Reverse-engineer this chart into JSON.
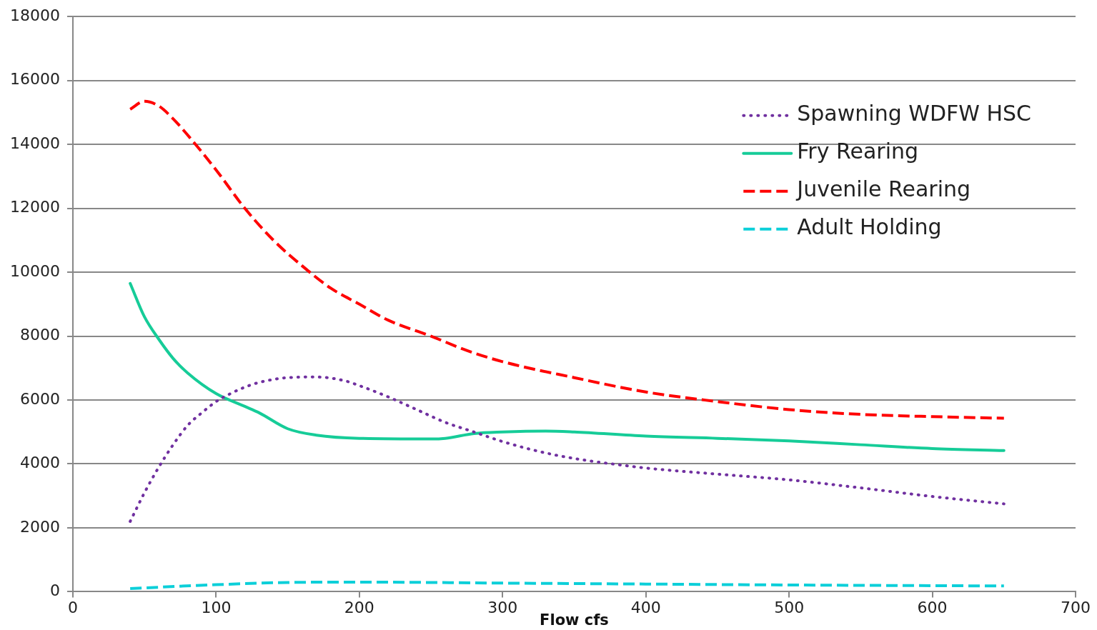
{
  "chart_data": {
    "type": "line",
    "xlabel": "Flow cfs",
    "xlim": [
      0,
      700
    ],
    "xticks": [
      0,
      100,
      200,
      300,
      400,
      500,
      600,
      700
    ],
    "ylim": [
      0,
      18000
    ],
    "yticks": [
      0,
      2000,
      4000,
      6000,
      8000,
      10000,
      12000,
      14000,
      16000,
      18000
    ],
    "grid": "y",
    "legend": "top right",
    "marker": "none",
    "series": [
      {
        "name": "Spawning WDFW HSC",
        "color": "#7030a0",
        "line_style": "dotted",
        "x": [
          40,
          50,
          60,
          70,
          80,
          90,
          100,
          110,
          120,
          130,
          150,
          170,
          190,
          200,
          220,
          240,
          260,
          280,
          300,
          320,
          340,
          360,
          380,
          400,
          450,
          500,
          550,
          600,
          650
        ],
        "values": [
          2200,
          3100,
          3900,
          4600,
          5200,
          5600,
          5950,
          6200,
          6400,
          6550,
          6700,
          6720,
          6600,
          6450,
          6100,
          5700,
          5300,
          5000,
          4700,
          4450,
          4250,
          4100,
          3980,
          3870,
          3680,
          3500,
          3250,
          2980,
          2750
        ]
      },
      {
        "name": "Fry Rearing",
        "color": "#16cc98",
        "line_style": "solid",
        "x": [
          40,
          50,
          60,
          70,
          80,
          100,
          120,
          130,
          150,
          170,
          200,
          250,
          260,
          280,
          300,
          330,
          350,
          400,
          450,
          500,
          550,
          600,
          650
        ],
        "values": [
          9650,
          8600,
          7900,
          7300,
          6850,
          6200,
          5800,
          5600,
          5100,
          4900,
          4800,
          4780,
          4800,
          4950,
          5000,
          5030,
          5000,
          4870,
          4800,
          4720,
          4600,
          4480,
          4420
        ]
      },
      {
        "name": "Juvenile Rearing",
        "color": "#ff0000",
        "line_style": "dashed",
        "x": [
          40,
          50,
          60,
          70,
          80,
          100,
          120,
          140,
          160,
          180,
          200,
          220,
          250,
          275,
          300,
          350,
          400,
          450,
          500,
          550,
          600,
          650
        ],
        "values": [
          15100,
          15350,
          15200,
          14800,
          14300,
          13200,
          12000,
          11000,
          10200,
          9500,
          9000,
          8500,
          8000,
          7550,
          7200,
          6700,
          6250,
          5950,
          5700,
          5550,
          5480,
          5430
        ]
      },
      {
        "name": "Adult Holding",
        "color": "#0ccfd9",
        "line_style": "dashed",
        "x": [
          40,
          100,
          150,
          200,
          250,
          300,
          400,
          500,
          600,
          650
        ],
        "values": [
          100,
          220,
          290,
          300,
          290,
          270,
          240,
          210,
          190,
          180
        ]
      }
    ]
  }
}
